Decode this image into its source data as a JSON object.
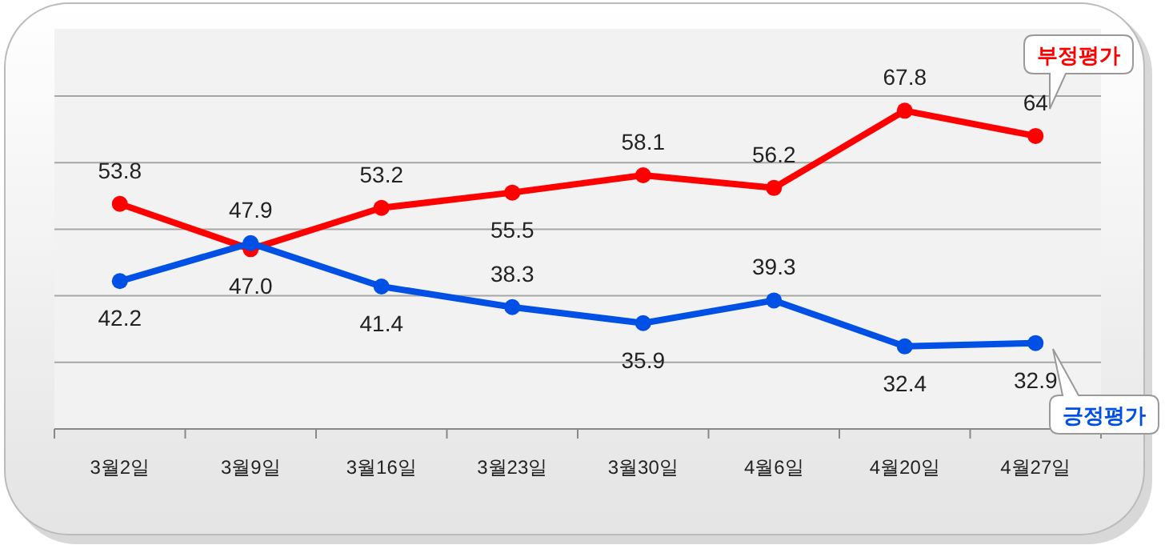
{
  "chart_data": {
    "type": "line",
    "categories": [
      "3월2일",
      "3월9일",
      "3월16일",
      "3월23일",
      "3월30일",
      "4월6일",
      "4월20일",
      "4월27일"
    ],
    "series": [
      {
        "name": "부정평가",
        "color": "#ff0000",
        "values": [
          53.8,
          47.0,
          53.2,
          55.5,
          58.1,
          56.2,
          67.8,
          64
        ],
        "value_labels": [
          "53.8",
          "47.0",
          "53.2",
          "55.5",
          "58.1",
          "56.2",
          "67.8",
          "64"
        ]
      },
      {
        "name": "긍정평가",
        "color": "#0050e6",
        "values": [
          42.2,
          47.9,
          41.4,
          38.3,
          35.9,
          39.3,
          32.4,
          32.9
        ],
        "value_labels": [
          "42.2",
          "47.9",
          "41.4",
          "38.3",
          "35.9",
          "39.3",
          "32.4",
          "32.9"
        ]
      }
    ],
    "relative": false,
    "ylim": [
      20,
      70
    ],
    "yticks": [
      {
        "value": 30,
        "label": null
      },
      {
        "value": 40,
        "label": null
      },
      {
        "value": 50,
        "label": null
      },
      {
        "value": 60,
        "label": null
      },
      {
        "value": 70,
        "label": null
      }
    ],
    "tick_labels": "x",
    "grid": "y",
    "marker": "circle",
    "line_style": "solid"
  }
}
